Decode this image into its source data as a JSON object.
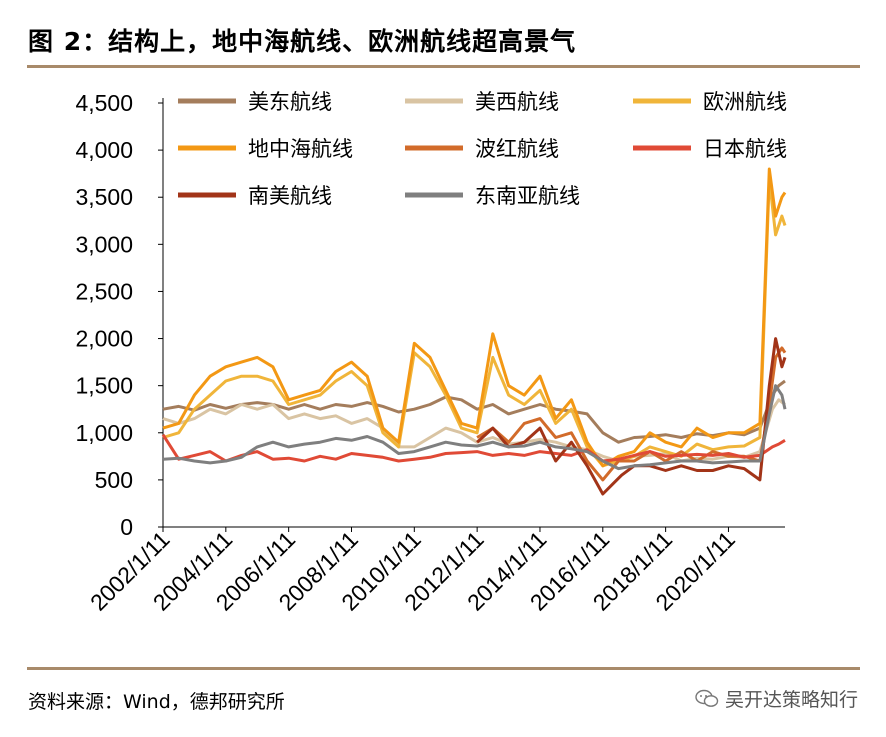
{
  "figure_title": "图 2：结构上，地中海航线、欧洲航线超高景气",
  "source": "资料来源：Wind，德邦研究所",
  "watermark": "吴开达策略知行",
  "chart_data": {
    "type": "line",
    "title": "图 2：结构上，地中海航线、欧洲航线超高景气",
    "xlabel": "",
    "ylabel": "",
    "ylim": [
      0,
      4500
    ],
    "yticks": [
      0,
      500,
      1000,
      1500,
      2000,
      2500,
      3000,
      3500,
      4000,
      4500
    ],
    "ytick_labels": [
      "0",
      "500",
      "1,000",
      "1,500",
      "2,000",
      "2,500",
      "3,000",
      "3,500",
      "4,000",
      "4,500"
    ],
    "xlim": [
      2002.0,
      2021.8
    ],
    "xticks": [
      2002,
      2004,
      2006,
      2008,
      2010,
      2012,
      2014,
      2016,
      2018,
      2020
    ],
    "xtick_labels": [
      "2002/1/11",
      "2004/1/11",
      "2006/1/11",
      "2008/1/11",
      "2010/1/11",
      "2012/1/11",
      "2014/1/11",
      "2016/1/11",
      "2018/1/11",
      "2020/1/11"
    ],
    "grid": false,
    "legend_position": "top",
    "series": [
      {
        "name": "美东航线",
        "color": "#a47d5c",
        "x": [
          2002.0,
          2002.5,
          2003.0,
          2003.5,
          2004.0,
          2004.5,
          2005.0,
          2005.5,
          2006.0,
          2006.5,
          2007.0,
          2007.5,
          2008.0,
          2008.5,
          2009.0,
          2009.5,
          2010.0,
          2010.5,
          2011.0,
          2011.5,
          2012.0,
          2012.5,
          2013.0,
          2013.5,
          2014.0,
          2014.5,
          2015.0,
          2015.5,
          2016.0,
          2016.5,
          2017.0,
          2017.5,
          2018.0,
          2018.5,
          2019.0,
          2019.5,
          2020.0,
          2020.5,
          2021.0,
          2021.4,
          2021.6,
          2021.8
        ],
        "y": [
          1250,
          1280,
          1240,
          1300,
          1260,
          1300,
          1320,
          1300,
          1250,
          1300,
          1250,
          1300,
          1280,
          1320,
          1280,
          1220,
          1250,
          1300,
          1380,
          1350,
          1250,
          1300,
          1200,
          1250,
          1300,
          1250,
          1230,
          1200,
          1000,
          900,
          950,
          960,
          980,
          950,
          990,
          970,
          1000,
          980,
          1050,
          1400,
          1500,
          1550
        ]
      },
      {
        "name": "美西航线",
        "color": "#d9c4a3",
        "x": [
          2002.0,
          2002.5,
          2003.0,
          2003.5,
          2004.0,
          2004.5,
          2005.0,
          2005.5,
          2006.0,
          2006.5,
          2007.0,
          2007.5,
          2008.0,
          2008.5,
          2009.0,
          2009.5,
          2010.0,
          2010.5,
          2011.0,
          2011.5,
          2012.0,
          2012.5,
          2013.0,
          2013.5,
          2014.0,
          2014.5,
          2015.0,
          2015.5,
          2016.0,
          2016.5,
          2017.0,
          2017.5,
          2018.0,
          2018.5,
          2019.0,
          2019.5,
          2020.0,
          2020.5,
          2021.0,
          2021.4,
          2021.6,
          2021.8
        ],
        "y": [
          1150,
          1100,
          1150,
          1250,
          1200,
          1300,
          1250,
          1300,
          1150,
          1200,
          1150,
          1180,
          1100,
          1150,
          1050,
          850,
          850,
          950,
          1050,
          1000,
          900,
          950,
          880,
          900,
          930,
          900,
          850,
          820,
          750,
          700,
          750,
          760,
          780,
          700,
          730,
          720,
          750,
          740,
          800,
          1250,
          1350,
          1300
        ]
      },
      {
        "name": "欧洲航线",
        "color": "#f0b53a",
        "x": [
          2002.0,
          2002.5,
          2003.0,
          2003.5,
          2004.0,
          2004.5,
          2005.0,
          2005.5,
          2006.0,
          2006.5,
          2007.0,
          2007.5,
          2008.0,
          2008.5,
          2009.0,
          2009.5,
          2010.0,
          2010.5,
          2011.0,
          2011.5,
          2012.0,
          2012.5,
          2013.0,
          2013.5,
          2014.0,
          2014.5,
          2015.0,
          2015.5,
          2016.0,
          2016.5,
          2017.0,
          2017.5,
          2018.0,
          2018.5,
          2019.0,
          2019.5,
          2020.0,
          2020.5,
          2021.0,
          2021.3,
          2021.5,
          2021.7,
          2021.8
        ],
        "y": [
          950,
          1000,
          1250,
          1400,
          1550,
          1600,
          1600,
          1550,
          1300,
          1350,
          1400,
          1550,
          1650,
          1500,
          1000,
          850,
          1850,
          1700,
          1400,
          1050,
          1000,
          1800,
          1400,
          1300,
          1450,
          1100,
          1250,
          850,
          650,
          700,
          750,
          850,
          800,
          750,
          880,
          820,
          850,
          860,
          950,
          3700,
          3100,
          3300,
          3200
        ]
      },
      {
        "name": "地中海航线",
        "color": "#f39814",
        "x": [
          2002.0,
          2002.5,
          2003.0,
          2003.5,
          2004.0,
          2004.5,
          2005.0,
          2005.5,
          2006.0,
          2006.5,
          2007.0,
          2007.5,
          2008.0,
          2008.5,
          2009.0,
          2009.5,
          2010.0,
          2010.5,
          2011.0,
          2011.5,
          2012.0,
          2012.5,
          2013.0,
          2013.5,
          2014.0,
          2014.5,
          2015.0,
          2015.5,
          2016.0,
          2016.5,
          2017.0,
          2017.5,
          2018.0,
          2018.5,
          2019.0,
          2019.5,
          2020.0,
          2020.5,
          2021.0,
          2021.3,
          2021.5,
          2021.7,
          2021.8
        ],
        "y": [
          1050,
          1100,
          1400,
          1600,
          1700,
          1750,
          1800,
          1700,
          1350,
          1400,
          1450,
          1650,
          1750,
          1600,
          1050,
          900,
          1950,
          1800,
          1450,
          1100,
          1050,
          2050,
          1500,
          1400,
          1600,
          1150,
          1350,
          900,
          650,
          750,
          800,
          1000,
          900,
          850,
          1050,
          950,
          1000,
          1000,
          1100,
          3800,
          3300,
          3500,
          3550
        ]
      },
      {
        "name": "波红航线",
        "color": "#d26b2a",
        "x": [
          2002.0,
          2003.0,
          2004.0,
          2005.0,
          2006.0,
          2007.0,
          2008.0,
          2009.0,
          2010.0,
          2011.0,
          2011.5,
          2012.0,
          2012.5,
          2013.0,
          2013.5,
          2014.0,
          2014.5,
          2015.0,
          2015.5,
          2016.0,
          2016.5,
          2017.0,
          2017.5,
          2018.0,
          2018.5,
          2019.0,
          2019.5,
          2020.0,
          2020.5,
          2021.0,
          2021.3,
          2021.5,
          2021.7,
          2021.8
        ],
        "y": [
          null,
          null,
          null,
          null,
          null,
          null,
          null,
          null,
          null,
          null,
          null,
          950,
          1050,
          900,
          1100,
          1150,
          950,
          1000,
          700,
          500,
          700,
          700,
          800,
          700,
          800,
          700,
          800,
          750,
          750,
          700,
          1300,
          1800,
          1900,
          1850
        ]
      },
      {
        "name": "日本航线",
        "color": "#e04a36",
        "x": [
          2002.0,
          2002.5,
          2003.0,
          2003.5,
          2004.0,
          2004.5,
          2005.0,
          2005.5,
          2006.0,
          2006.5,
          2007.0,
          2007.5,
          2008.0,
          2008.5,
          2009.0,
          2009.5,
          2010.0,
          2010.5,
          2011.0,
          2011.5,
          2012.0,
          2012.5,
          2013.0,
          2013.5,
          2014.0,
          2014.5,
          2015.0,
          2015.5,
          2016.0,
          2016.5,
          2017.0,
          2017.5,
          2018.0,
          2018.5,
          2019.0,
          2019.5,
          2020.0,
          2020.5,
          2021.0,
          2021.4,
          2021.6,
          2021.8
        ],
        "y": [
          980,
          720,
          760,
          800,
          700,
          760,
          800,
          720,
          730,
          700,
          750,
          720,
          780,
          760,
          740,
          700,
          720,
          740,
          780,
          790,
          800,
          760,
          780,
          760,
          800,
          780,
          760,
          820,
          700,
          720,
          760,
          800,
          750,
          760,
          770,
          760,
          780,
          740,
          760,
          850,
          880,
          920
        ]
      },
      {
        "name": "南美航线",
        "color": "#a23418",
        "x": [
          2002.0,
          2003.0,
          2004.0,
          2005.0,
          2006.0,
          2007.0,
          2008.0,
          2009.0,
          2010.0,
          2011.0,
          2011.5,
          2012.0,
          2012.5,
          2013.0,
          2013.5,
          2014.0,
          2014.5,
          2015.0,
          2015.5,
          2016.0,
          2016.3,
          2016.6,
          2017.0,
          2017.5,
          2018.0,
          2018.5,
          2019.0,
          2019.5,
          2020.0,
          2020.5,
          2021.0,
          2021.3,
          2021.5,
          2021.7,
          2021.8
        ],
        "y": [
          null,
          null,
          null,
          null,
          null,
          null,
          null,
          null,
          null,
          null,
          null,
          900,
          1050,
          850,
          900,
          1050,
          700,
          900,
          650,
          350,
          450,
          550,
          650,
          650,
          600,
          650,
          600,
          600,
          650,
          620,
          500,
          1500,
          2000,
          1700,
          1800
        ]
      },
      {
        "name": "东南亚航线",
        "color": "#7f7f7f",
        "x": [
          2002.0,
          2002.5,
          2003.0,
          2003.5,
          2004.0,
          2004.5,
          2005.0,
          2005.5,
          2006.0,
          2006.5,
          2007.0,
          2007.5,
          2008.0,
          2008.5,
          2009.0,
          2009.5,
          2010.0,
          2010.5,
          2011.0,
          2011.5,
          2012.0,
          2012.5,
          2013.0,
          2013.5,
          2014.0,
          2014.5,
          2015.0,
          2015.5,
          2016.0,
          2016.5,
          2017.0,
          2017.5,
          2018.0,
          2018.5,
          2019.0,
          2019.5,
          2020.0,
          2020.5,
          2021.0,
          2021.3,
          2021.5,
          2021.7,
          2021.8
        ],
        "y": [
          720,
          730,
          700,
          680,
          700,
          740,
          850,
          900,
          850,
          880,
          900,
          940,
          920,
          960,
          900,
          780,
          800,
          850,
          900,
          870,
          860,
          900,
          850,
          860,
          900,
          850,
          830,
          800,
          700,
          620,
          650,
          660,
          680,
          700,
          700,
          680,
          690,
          700,
          700,
          1200,
          1500,
          1400,
          1250
        ]
      }
    ]
  }
}
